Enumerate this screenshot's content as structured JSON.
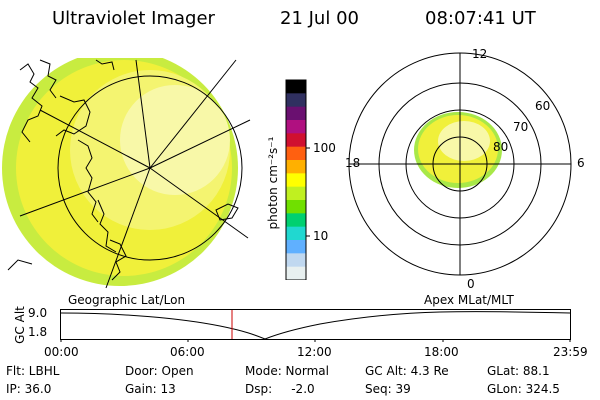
{
  "header": {
    "title": "Ultraviolet Imager",
    "date": "21 Jul 00",
    "time": "08:07:41 UT"
  },
  "colorbar": {
    "unit_label": "photon cm⁻²s⁻¹",
    "tick_labels": [
      "100",
      "10"
    ],
    "colors": [
      "#000000",
      "#303060",
      "#6a1070",
      "#b01080",
      "#d01030",
      "#ff6010",
      "#ffb000",
      "#ffff00",
      "#c0f020",
      "#70e000",
      "#00d070",
      "#20d8d0",
      "#60b0ff",
      "#c0d8f0",
      "#e8f0f0"
    ]
  },
  "polar_plot": {
    "mlt_labels": {
      "top": "12",
      "left": "18",
      "right": "6",
      "bottom": "0"
    },
    "mlat_labels": [
      "60",
      "70",
      "80"
    ]
  },
  "timeline": {
    "left_title": "Geographic Lat/Lon",
    "right_title": "Apex MLat/MLT",
    "y_axis_label": "GC Alt",
    "y_ticks": [
      "9.0",
      "1.8"
    ],
    "x_ticks": [
      "00:00",
      "06:00",
      "12:00",
      "18:00",
      "23:59"
    ],
    "marker_time": "08:07:41",
    "marker_color": "#cc0000"
  },
  "info": {
    "row1": [
      "Flt: LBHL",
      "Door: Open",
      "Mode: Normal",
      "GC Alt: 4.3 Re",
      "GLat: 88.1"
    ],
    "row2": [
      "IP: 36.0",
      "Gain: 13",
      "Dsp:     -2.0",
      "Seq: 39",
      "GLon: 324.5"
    ]
  },
  "colors": {
    "emission_main": "#f0f03a",
    "emission_edge": "#a8e848",
    "emission_light": "#f8f8a0"
  }
}
